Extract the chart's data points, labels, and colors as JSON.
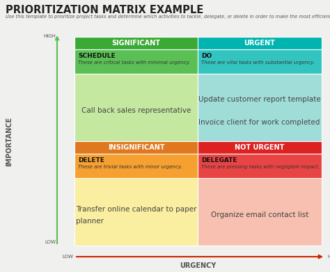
{
  "title": "PRIORITIZATION MATRIX EXAMPLE",
  "subtitle": "Use this template to prioritize project tasks and determine which activities to tackle, delegate, or delete in order to make the most efficient use of your time.",
  "quadrants": {
    "top_left": {
      "header_text": "SIGNIFICANT",
      "header_bg": "#3aaa35",
      "subheader_text": "SCHEDULE",
      "subheader_desc": "These are critical tasks with minimal urgency.",
      "subheader_bg": "#5abf55",
      "body_bg": "#c5e8a0",
      "body_text": "Call back sales representative"
    },
    "top_right": {
      "header_text": "URGENT",
      "header_bg": "#00b4b0",
      "subheader_text": "DO",
      "subheader_desc": "These are vital tasks with substantial urgency.",
      "subheader_bg": "#33c4bf",
      "body_bg": "#a0ddd8",
      "body_text": "Update customer report template\n\nInvoice client for work completed"
    },
    "bottom_left": {
      "header_text": "INSIGNIFICANT",
      "header_bg": "#e07820",
      "subheader_text": "DELETE",
      "subheader_desc": "These are trivial tasks with minor urgency.",
      "subheader_bg": "#f5a030",
      "body_bg": "#faeea0",
      "body_text": "Transfer online calendar to paper\nplanner"
    },
    "bottom_right": {
      "header_text": "NOT URGENT",
      "header_bg": "#dd2222",
      "subheader_text": "DELEGATE",
      "subheader_desc": "These are pressing tasks with negligible impact.",
      "subheader_bg": "#e84444",
      "body_bg": "#f7c0b0",
      "body_text": "Organize email contact list"
    }
  },
  "importance_label": "IMPORTANCE",
  "urgency_label": "URGENCY",
  "high_label": "HIGH",
  "low_label": "LOW",
  "importance_arrow_color": "#5abf55",
  "urgency_arrow_color": "#cc2200",
  "bg_color": "#f0f0ee",
  "title_color": "#222222",
  "subtitle_color": "#555555",
  "body_text_color": "#444444",
  "axis_label_color": "#555555"
}
